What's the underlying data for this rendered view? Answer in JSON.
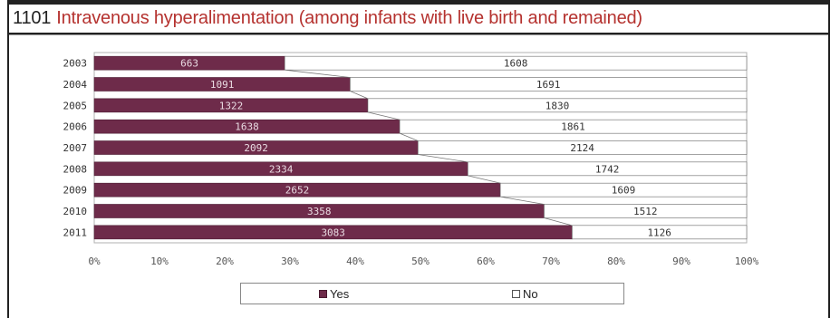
{
  "title": {
    "number": "1101",
    "text": "Intravenous hyperalimentation (among infants with live birth and remained)"
  },
  "colors": {
    "yes": "#6e2b4a",
    "no": "#ffffff",
    "title_text": "#b5322f"
  },
  "chart_data": {
    "type": "bar",
    "orientation": "horizontal",
    "stacking": "percent",
    "categories": [
      "2003",
      "2004",
      "2005",
      "2006",
      "2007",
      "2008",
      "2009",
      "2010",
      "2011"
    ],
    "series": [
      {
        "name": "Yes",
        "values": [
          663,
          1091,
          1322,
          1638,
          2092,
          2334,
          2652,
          3358,
          3083
        ]
      },
      {
        "name": "No",
        "values": [
          1608,
          1691,
          1830,
          1861,
          2124,
          1742,
          1609,
          1512,
          1126
        ]
      }
    ],
    "x_ticks": [
      "0%",
      "10%",
      "20%",
      "30%",
      "40%",
      "50%",
      "60%",
      "70%",
      "80%",
      "90%",
      "100%"
    ],
    "xlim": [
      0,
      100
    ],
    "grid": false,
    "series_lines": true,
    "legend_position": "bottom"
  },
  "legend": {
    "yes_label": "Yes",
    "no_label": "No"
  }
}
